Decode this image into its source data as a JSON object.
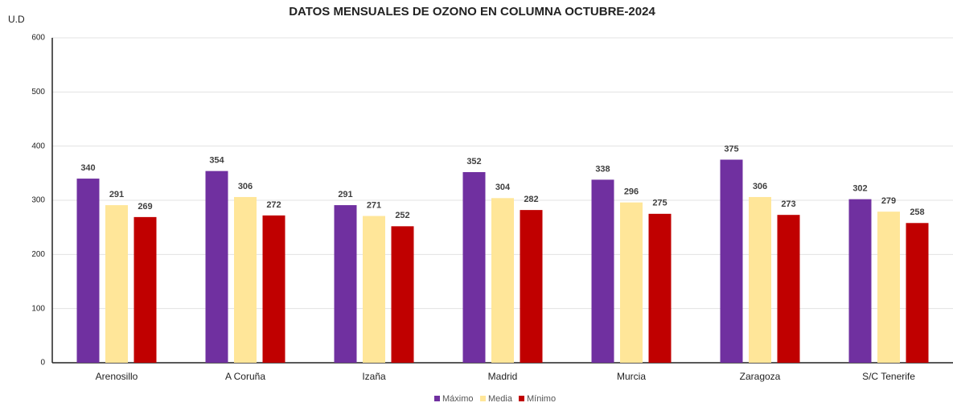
{
  "chart_data": {
    "type": "bar",
    "title": "DATOS MENSUALES DE OZONO EN COLUMNA OCTUBRE-2024",
    "y_label": "U.D",
    "categories": [
      "Arenosillo",
      "A Coruña",
      "Izaña",
      "Madrid",
      "Murcia",
      "Zaragoza",
      "S/C Tenerife"
    ],
    "series": [
      {
        "name": "Máximo",
        "color": "#7030a0",
        "values": [
          340,
          354,
          291,
          352,
          338,
          375,
          302
        ]
      },
      {
        "name": "Media",
        "color": "#ffe699",
        "values": [
          291,
          306,
          271,
          304,
          296,
          306,
          279
        ]
      },
      {
        "name": "Mínimo",
        "color": "#c00000",
        "values": [
          269,
          272,
          252,
          282,
          275,
          273,
          258
        ]
      }
    ],
    "ylim": [
      0,
      600
    ],
    "yticks": [
      0,
      100,
      200,
      300,
      400,
      500,
      600
    ],
    "grid": true,
    "legend": "bottom"
  }
}
